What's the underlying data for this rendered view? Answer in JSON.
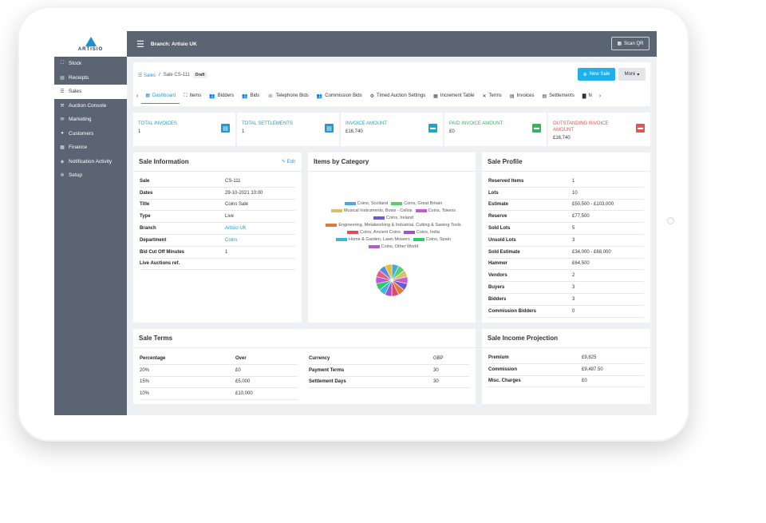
{
  "app": {
    "logo_text": "ARTISIO"
  },
  "sidebar": {
    "items": [
      {
        "label": "Stock",
        "icon": "sitemap-icon",
        "glyph": "⛶"
      },
      {
        "label": "Receipts",
        "icon": "receipt-icon",
        "glyph": "▤"
      },
      {
        "label": "Sales",
        "icon": "list-icon",
        "glyph": "☰",
        "active": true
      },
      {
        "label": "Auction Console",
        "icon": "gavel-icon",
        "glyph": "⚒"
      },
      {
        "label": "Marketing",
        "icon": "megaphone-icon",
        "glyph": "✉"
      },
      {
        "label": "Customers",
        "icon": "user-icon",
        "glyph": "●"
      },
      {
        "label": "Finance",
        "icon": "bank-icon",
        "glyph": "▦"
      },
      {
        "label": "Notification Activity",
        "icon": "bell-icon",
        "glyph": "◈"
      },
      {
        "label": "Setup",
        "icon": "gear-icon",
        "glyph": "✲"
      }
    ]
  },
  "topbar": {
    "branch": "Branch: Artisio UK",
    "scan_qr": "Scan QR"
  },
  "header": {
    "breadcrumb_root": "Sales",
    "breadcrumb_sep": "/",
    "breadcrumb_current": "Sale CS-111",
    "status_badge": "Draft",
    "new_sale": "New Sale",
    "more": "More"
  },
  "tabs": [
    "Dashboard",
    "Items",
    "Bidders",
    "Bids",
    "Telephone Bids",
    "Commission Bids",
    "Timed Auction Settings",
    "Increment Table",
    "Terms",
    "Invoices",
    "Settlements",
    "N"
  ],
  "stats": [
    {
      "label": "TOTAL INVOICES",
      "value": "1",
      "color": "#1e9bd7"
    },
    {
      "label": "TOTAL SETTLEMENTS",
      "value": "1",
      "color": "#1e9bd7"
    },
    {
      "label": "INVOICE AMOUNT",
      "value": "£16,740",
      "color": "#19a8c9"
    },
    {
      "label": "PAID INVOICE AMOUNT",
      "value": "£0",
      "color": "#2eb85c"
    },
    {
      "label": "OUTSTANDING INVOICE AMOUNT",
      "value": "£16,740",
      "color": "#e55353"
    }
  ],
  "sale_info": {
    "title": "Sale Information",
    "edit": "Edit",
    "rows": [
      {
        "k": "Sale",
        "v": "CS-111"
      },
      {
        "k": "Dates",
        "v": "29-10-2021 10:00"
      },
      {
        "k": "Title",
        "v": "Coins Sale"
      },
      {
        "k": "Type",
        "v": "Live"
      },
      {
        "k": "Branch",
        "v": "Artisio UK",
        "link": true
      },
      {
        "k": "Department",
        "v": "Coins",
        "link": true
      },
      {
        "k": "Bid Cut Off Minutes",
        "v": "1"
      },
      {
        "k": "Live Auctions ref.",
        "v": ""
      }
    ]
  },
  "items_by_category": {
    "title": "Items by Category",
    "legend_rows": [
      [
        {
          "label": "Coins, Scotland",
          "color": "#4aa8e0"
        },
        {
          "label": "Coins, Great Britain",
          "color": "#56cf6e"
        }
      ],
      [
        {
          "label": "Musical Instruments, Bows - Cellos",
          "color": "#d6c06a"
        },
        {
          "label": "Coins, Tokens",
          "color": "#c85bd0"
        }
      ],
      [
        {
          "label": "Coins, Ireland",
          "color": "#6a5ad6"
        }
      ],
      [
        {
          "label": "Engineering, Metalworking & Industrial, Cutting & Sawing Tools",
          "color": "#e07a3c"
        }
      ],
      [
        {
          "label": "Coins, Ancient Coins",
          "color": "#e04a5a"
        },
        {
          "label": "Coins, India",
          "color": "#a44fd6"
        }
      ],
      [
        {
          "label": "Home & Garden, Lawn Mowers",
          "color": "#3ab5e0"
        },
        {
          "label": "Coins, Spain",
          "color": "#2fc86a"
        }
      ],
      [
        {
          "label": "Coins, Other World",
          "color": "#b85ad0"
        }
      ]
    ],
    "pie_colors": [
      "#4aa8e0",
      "#56cf6e",
      "#d6c06a",
      "#c85bd0",
      "#6a5ad6",
      "#e07a3c",
      "#e04a5a",
      "#a44fd6",
      "#3ab5e0",
      "#2fc86a",
      "#b85ad0",
      "#e85a8a",
      "#5a8ae0",
      "#e0c03a"
    ]
  },
  "sale_profile": {
    "title": "Sale Profile",
    "rows": [
      {
        "k": "Reserved Items",
        "v": "1"
      },
      {
        "k": "Lots",
        "v": "10"
      },
      {
        "k": "Estimate",
        "v": "£50,500 - £103,000"
      },
      {
        "k": "Reserve",
        "v": "£77,500"
      },
      {
        "k": "Sold Lots",
        "v": "5"
      },
      {
        "k": "Unsold Lots",
        "v": "3"
      },
      {
        "k": "Sold Estimate",
        "v": "£34,000 - £68,000"
      },
      {
        "k": "Hammer",
        "v": "£64,500"
      },
      {
        "k": "Vendors",
        "v": "2"
      },
      {
        "k": "Buyers",
        "v": "3"
      },
      {
        "k": "Bidders",
        "v": "3"
      },
      {
        "k": "Commission Bidders",
        "v": "0"
      }
    ]
  },
  "sale_terms": {
    "title": "Sale Terms",
    "head": {
      "k": "Percentage",
      "v": "Over"
    },
    "rows": [
      {
        "k": "20%",
        "v": "£0"
      },
      {
        "k": "15%",
        "v": "£5,000"
      },
      {
        "k": "10%",
        "v": "£10,000"
      }
    ],
    "right_rows": [
      {
        "k": "Currency",
        "v": "GBP"
      },
      {
        "k": "Payment Terms",
        "v": "30"
      },
      {
        "k": "Settlement Days",
        "v": "30"
      }
    ]
  },
  "income_projection": {
    "title": "Sale Income Projection",
    "rows": [
      {
        "k": "Premium",
        "v": "£9,825"
      },
      {
        "k": "Commission",
        "v": "£9,487.50"
      },
      {
        "k": "Misc. Charges",
        "v": "£0"
      }
    ]
  }
}
